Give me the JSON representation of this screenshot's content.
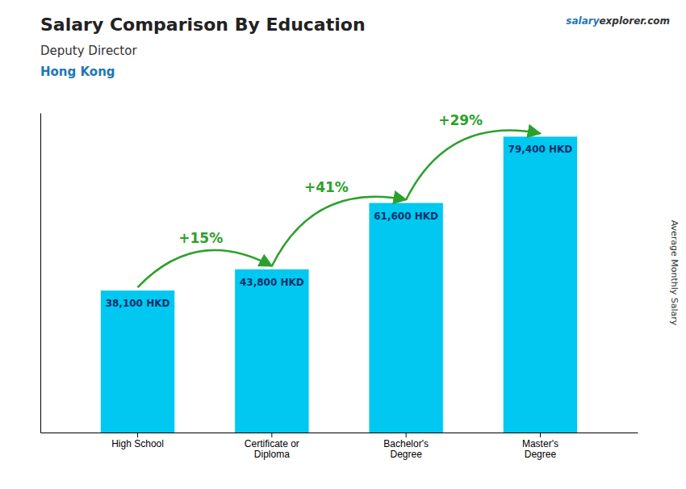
{
  "chart_data": {
    "type": "bar",
    "title": "Salary Comparison By Education",
    "subtitle": "Deputy Director",
    "annotations": [
      "Hong Kong",
      "salary",
      "explorer.com"
    ],
    "y_label": "Average Monthly Salary",
    "categories": [
      "High School",
      "Certificate or\nDiploma",
      "Bachelor's\nDegree",
      "Master's\nDegree"
    ],
    "values": [
      38100,
      43800,
      61600,
      79400
    ],
    "value_labels": [
      "38,100 HKD",
      "43,800 HKD",
      "61,600 HKD",
      "79,400 HKD"
    ],
    "change_labels": [
      "+15%",
      "+41%",
      "+29%"
    ],
    "color": "#00c8f0",
    "ylim": [
      0,
      85752
    ],
    "yticks": [],
    "grid": false,
    "data_labels": true,
    "tick_labels": "x"
  }
}
